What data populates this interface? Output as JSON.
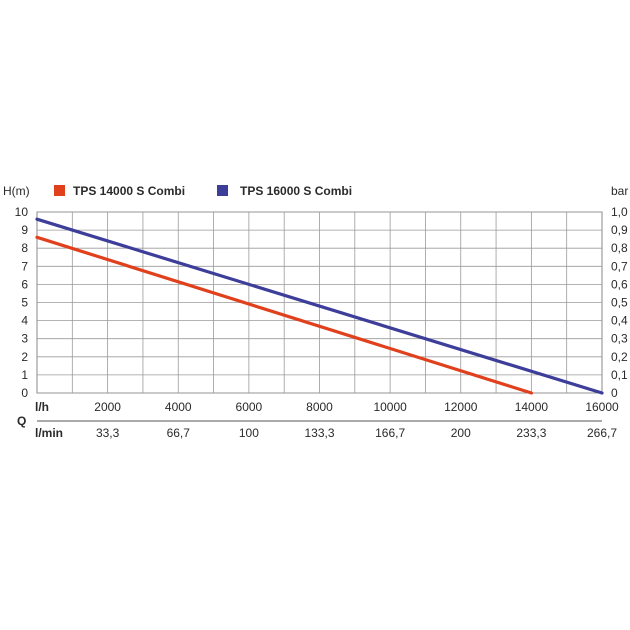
{
  "chart_data": {
    "type": "line",
    "left_axis_label": "H(m)",
    "right_axis_label": "bar",
    "q_label": "Q",
    "lh_label": "l/h",
    "lmin_label": "l/min",
    "xlim": [
      0,
      16000
    ],
    "ylim": [
      0,
      10
    ],
    "y_ticks": [
      "0",
      "1",
      "2",
      "3",
      "4",
      "5",
      "6",
      "7",
      "8",
      "9",
      "10"
    ],
    "y_right_ticks": [
      "0",
      "0,1",
      "0,2",
      "0,3",
      "0,4",
      "0,5",
      "0,6",
      "0,7",
      "0,8",
      "0,9",
      "1,0"
    ],
    "x_ticks_lh": [
      {
        "value": 2000,
        "label": "2000"
      },
      {
        "value": 4000,
        "label": "4000"
      },
      {
        "value": 6000,
        "label": "6000"
      },
      {
        "value": 8000,
        "label": "8000"
      },
      {
        "value": 10000,
        "label": "10000"
      },
      {
        "value": 12000,
        "label": "12000"
      },
      {
        "value": 14000,
        "label": "14000"
      },
      {
        "value": 16000,
        "label": "16000"
      }
    ],
    "x_ticks_lmin": [
      {
        "value": 2000,
        "label": "33,3"
      },
      {
        "value": 4000,
        "label": "66,7"
      },
      {
        "value": 6000,
        "label": "100"
      },
      {
        "value": 8000,
        "label": "133,3"
      },
      {
        "value": 10000,
        "label": "166,7"
      },
      {
        "value": 12000,
        "label": "200"
      },
      {
        "value": 14000,
        "label": "233,3"
      },
      {
        "value": 16000,
        "label": "266,7"
      }
    ],
    "grid": true,
    "legend_position": "top",
    "series": [
      {
        "name": "TPS 14000 S Combi",
        "color": "#e0401c",
        "x": [
          0,
          14000
        ],
        "y": [
          8.6,
          0
        ]
      },
      {
        "name": "TPS 16000 S Combi",
        "color": "#3d3d9a",
        "x": [
          0,
          16000
        ],
        "y": [
          9.6,
          0
        ]
      }
    ]
  }
}
